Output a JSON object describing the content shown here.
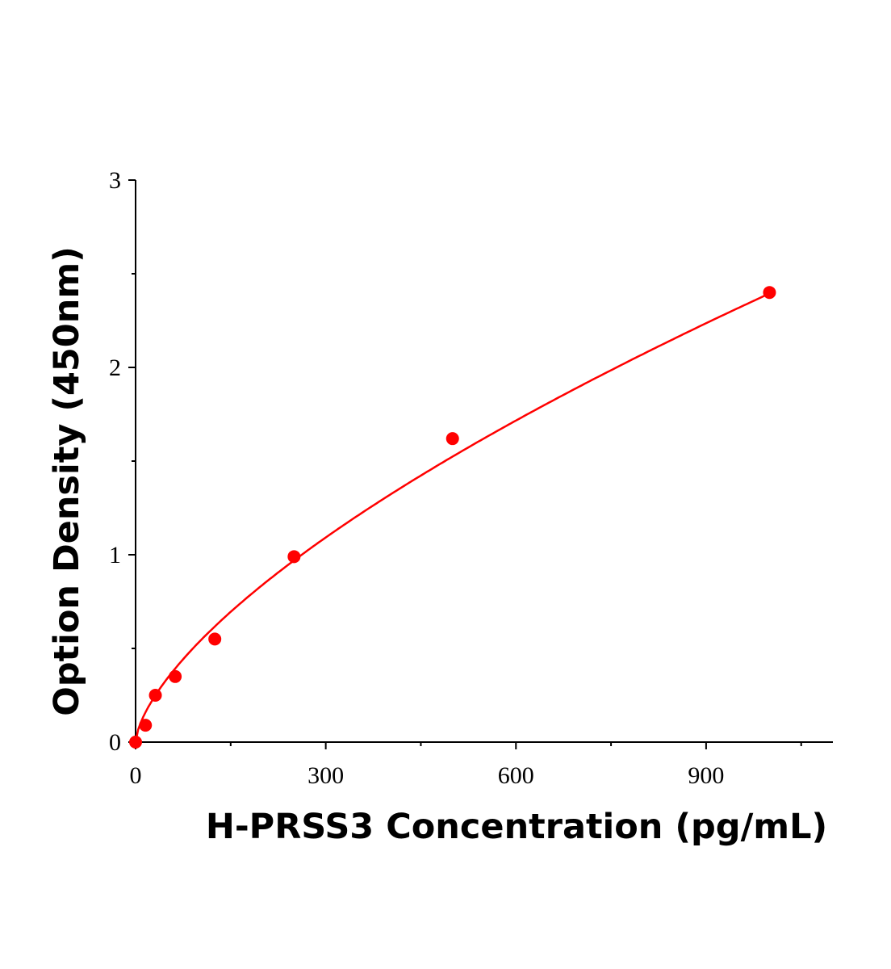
{
  "chart_data": {
    "type": "scatter",
    "title": "",
    "xlabel": "H-PRSS3 Concentration (pg/mL)",
    "ylabel": "Option Density (450nm)",
    "xlim": [
      0,
      1100
    ],
    "ylim": [
      0,
      3
    ],
    "xticks": [
      "0",
      "300",
      "600",
      "900"
    ],
    "yticks": [
      "0",
      "1",
      "2",
      "3"
    ],
    "xtick_values": [
      0,
      300,
      600,
      900
    ],
    "ytick_values": [
      0,
      1,
      2,
      3
    ],
    "x_minor_ticks": [
      150,
      450,
      750,
      1050
    ],
    "y_minor_ticks": [
      0.5,
      1.5,
      2.5
    ],
    "grid": false,
    "series": [
      {
        "x": [
          0,
          15.6,
          31.25,
          62.5,
          125,
          250,
          500,
          1000
        ],
        "y": [
          0,
          0.09,
          0.25,
          0.35,
          0.55,
          0.99,
          1.62,
          2.4
        ],
        "color": "#ff0000",
        "fit_curve": true
      }
    ]
  }
}
